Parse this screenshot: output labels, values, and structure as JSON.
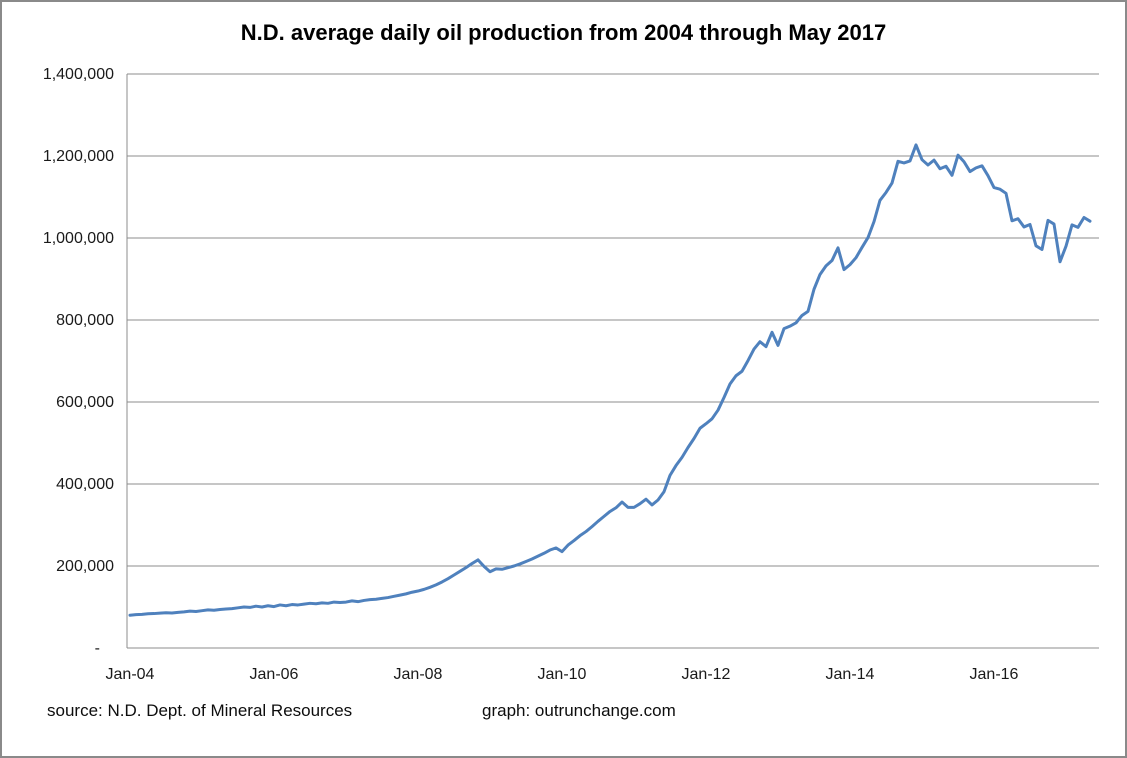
{
  "window": {
    "background": "#ffffff",
    "border_color": "#8a8a8a"
  },
  "chart_data": {
    "type": "line",
    "title": "N.D. average daily oil production from 2004 through May 2017",
    "xlabel": "",
    "ylabel": "",
    "ylim": [
      0,
      1400000
    ],
    "y_tick_step": 200000,
    "y_tick_labels": [
      "-",
      "200,000",
      "400,000",
      "600,000",
      "800,000",
      "1,000,000",
      "1,200,000",
      "1,400,000"
    ],
    "x_tick_labels": [
      "Jan-04",
      "Jan-06",
      "Jan-08",
      "Jan-10",
      "Jan-12",
      "Jan-14",
      "Jan-16"
    ],
    "x_tick_month_indices": [
      0,
      24,
      48,
      72,
      96,
      120,
      144
    ],
    "x_range": {
      "start_month": "Jan-04",
      "end_month": "May-17",
      "num_points": 161
    },
    "grid": true,
    "legend": "none",
    "series": [
      {
        "name": "N.D. average daily oil production (barrels per day)",
        "color": "#4f81bd",
        "values": [
          80000,
          81500,
          82000,
          83500,
          84000,
          85000,
          86000,
          85500,
          87000,
          88000,
          90000,
          89000,
          91000,
          93000,
          92000,
          94000,
          95000,
          96000,
          98000,
          100000,
          99000,
          102000,
          100000,
          103000,
          101000,
          105000,
          103000,
          106000,
          105000,
          107000,
          109000,
          108000,
          110000,
          109000,
          112000,
          111000,
          112000,
          115000,
          113000,
          116000,
          118000,
          119000,
          121000,
          123000,
          126000,
          129000,
          132000,
          136000,
          139000,
          143000,
          148000,
          154000,
          161000,
          169000,
          178000,
          187000,
          196000,
          206000,
          215000,
          199000,
          186000,
          193000,
          192000,
          196000,
          200000,
          205000,
          211000,
          217000,
          224000,
          231000,
          239000,
          244000,
          235000,
          251000,
          262000,
          274000,
          284000,
          296000,
          309000,
          321000,
          333000,
          342000,
          356000,
          343000,
          343000,
          352000,
          363000,
          349000,
          361000,
          381000,
          421000,
          445000,
          465000,
          489000,
          511000,
          536000,
          547000,
          559000,
          580000,
          611000,
          644000,
          664000,
          675000,
          701000,
          729000,
          747000,
          735000,
          770000,
          738000,
          779000,
          785000,
          793000,
          811000,
          821000,
          875000,
          911000,
          932000,
          945000,
          976000,
          923000,
          935000,
          952000,
          977000,
          1001000,
          1040000,
          1092000,
          1111000,
          1134000,
          1187000,
          1183000,
          1188000,
          1227000,
          1191000,
          1178000,
          1190000,
          1169000,
          1175000,
          1153000,
          1202000,
          1186000,
          1162000,
          1171000,
          1176000,
          1152000,
          1123000,
          1119000,
          1109000,
          1042000,
          1047000,
          1027000,
          1033000,
          981000,
          972000,
          1043000,
          1034000,
          942000,
          980000,
          1032000,
          1026000,
          1050000,
          1041000
        ]
      }
    ]
  },
  "footer": {
    "source_note": "source: N.D. Dept. of Mineral Resources",
    "credit_note": "graph: outrunchange.com"
  },
  "colors": {
    "line": "#4f81bd",
    "gridline": "#8c8c8c",
    "axis": "#8c8c8c",
    "tick_text": "#1a1a1a"
  }
}
